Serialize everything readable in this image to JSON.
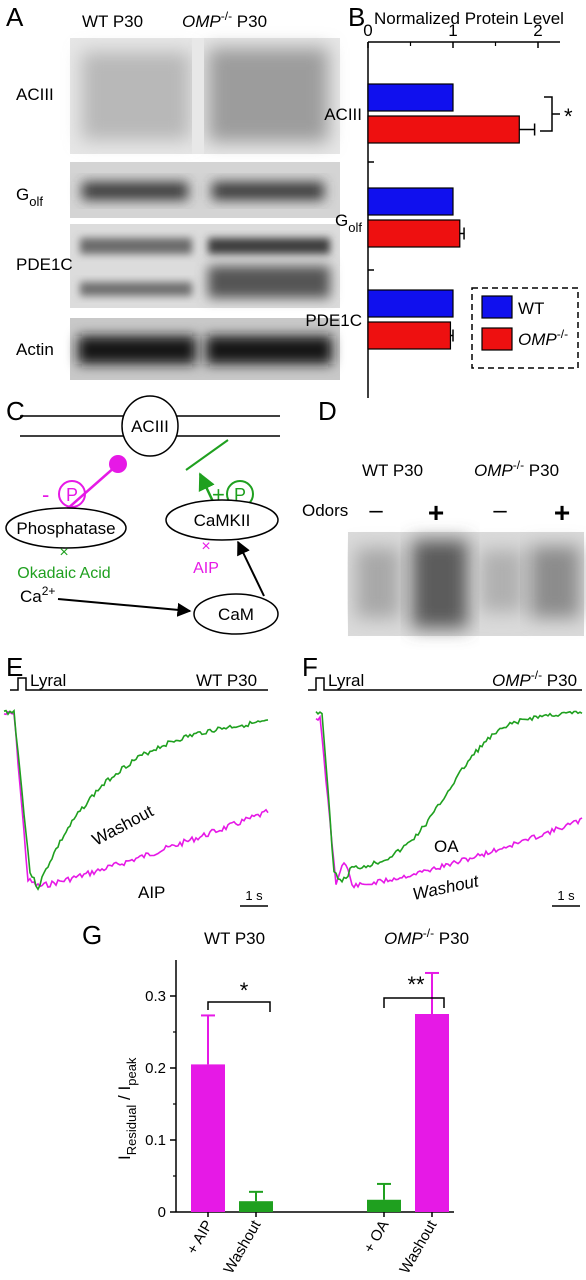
{
  "panels": {
    "a": "A",
    "b": "B",
    "c": "C",
    "d": "D",
    "e": "E",
    "f": "F",
    "g": "G"
  },
  "panel_a": {
    "col_wt": "WT P30",
    "col_omp_gene": "OMP",
    "col_omp_sup": "-/-",
    "col_omp_age": " P30",
    "rows": [
      {
        "label": "ACIII",
        "sub": ""
      },
      {
        "label": "G",
        "sub": "olf"
      },
      {
        "label": "PDE1C",
        "sub": ""
      },
      {
        "label": "Actin",
        "sub": ""
      }
    ]
  },
  "panel_b": {
    "chart_data": {
      "type": "bar",
      "title": "Normalized Protein Level",
      "orientation": "horizontal",
      "xlim": [
        0,
        2.2
      ],
      "xticks": [
        "0",
        "1",
        "2"
      ],
      "categories": [
        "ACIII",
        "Golf",
        "PDE1C"
      ],
      "category_labels": [
        {
          "main": "ACIII",
          "sub": ""
        },
        {
          "main": "G",
          "sub": "olf"
        },
        {
          "main": "PDE1C",
          "sub": ""
        }
      ],
      "series": [
        {
          "name": "WT",
          "color": "#1010ee",
          "values": [
            1.0,
            1.0,
            1.0
          ],
          "errors": [
            0,
            0,
            0
          ]
        },
        {
          "name": "OMP-/-",
          "color": "#ee1010",
          "values": [
            1.78,
            1.08,
            0.97
          ],
          "errors": [
            0.18,
            0.05,
            0.03
          ]
        }
      ],
      "significance": [
        "*",
        "",
        ""
      ],
      "legend": {
        "wt": "WT",
        "omp_gene": "OMP",
        "omp_sup": "-/-",
        "placement": "bottom-right"
      }
    }
  },
  "panel_c": {
    "aciii": "ACIII",
    "minus_sign": "-",
    "p_left": "P",
    "plus_sign": "+",
    "p_right": "P",
    "phosphatase": "Phosphatase",
    "camkii": "CaMKII",
    "okadaic": "Okadaic Acid",
    "aip": "AIP",
    "ca_base": "Ca",
    "ca_sup": "2+",
    "cam": "CaM",
    "x_mark": "×",
    "colors": {
      "magenta": "#e619e6",
      "green": "#1fa01f"
    }
  },
  "panel_d": {
    "wt": "WT P30",
    "omp_gene": "OMP",
    "omp_sup": "-/-",
    "omp_age": " P30",
    "odors": "Odors",
    "lanes": [
      "–",
      "+",
      "–",
      "+"
    ]
  },
  "panel_e": {
    "stim": "Lyral",
    "genotype": "WT P30",
    "trace_washout": "Washout",
    "trace_aip": "AIP",
    "scale": "1 s"
  },
  "panel_f": {
    "stim": "Lyral",
    "omp_gene": "OMP",
    "omp_sup": "-/-",
    "omp_age": " P30",
    "trace_oa": "OA",
    "trace_washout": "Washout",
    "scale": "1 s"
  },
  "panel_g": {
    "chart_data": {
      "type": "bar",
      "ylabel_main": "I",
      "ylabel_sub1": "Residual",
      "ylabel_mid": " / I",
      "ylabel_sub2": "peak",
      "ylim": [
        0,
        0.35
      ],
      "yticks": [
        "0",
        "0.1",
        "0.2",
        "0.3"
      ],
      "groups": [
        {
          "title": "WT P30",
          "title_gene": "",
          "title_sup": "",
          "significance": "*"
        },
        {
          "title": " P30",
          "title_gene": "OMP",
          "title_sup": "-/-",
          "significance": "**"
        }
      ],
      "categories": [
        "+ AIP",
        "Washout",
        "+ OA",
        "Washout"
      ],
      "values": [
        0.205,
        0.015,
        0.017,
        0.275
      ],
      "errors": [
        0.068,
        0.013,
        0.022,
        0.057
      ],
      "colors": [
        "#e619e6",
        "#1fa01f",
        "#1fa01f",
        "#e619e6"
      ]
    }
  }
}
